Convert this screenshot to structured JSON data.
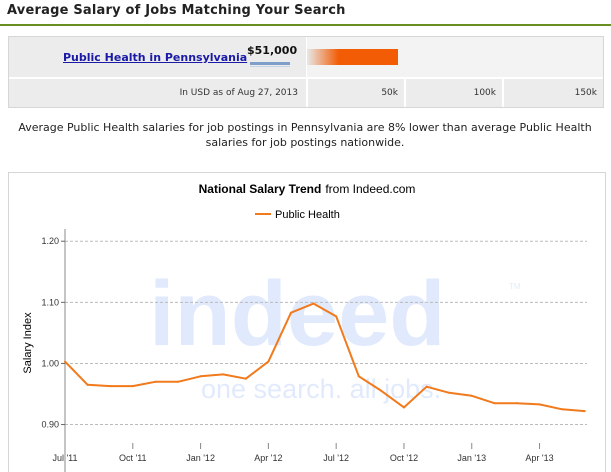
{
  "header": {
    "title": "Average Salary of Jobs Matching Your Search"
  },
  "salary": {
    "job_label": "Public Health in Pennsylvania",
    "amount": "$51,000",
    "amount_value": 51000,
    "usd_note": "In USD as of Aug 27, 2013",
    "scale_labels": [
      "50k",
      "100k",
      "150k"
    ],
    "scale_max": 150000,
    "bar_color": "#f25c05"
  },
  "description": "Average Public Health salaries for job postings in Pennsylvania are 8% lower than average Public Health salaries for job postings nationwide.",
  "watermark": {
    "logo": "indeed",
    "tagline": "one search. all jobs.",
    "tm": "TM"
  },
  "chart_data": {
    "type": "line",
    "title": "National Salary Trend",
    "title_suffix": "from Indeed.com",
    "ylabel": "Salary Index",
    "xlabel": "",
    "ylim": [
      0.86,
      1.22
    ],
    "yticks": [
      0.9,
      1.0,
      1.1,
      1.2
    ],
    "ytick_labels": [
      "0.90",
      "1.00",
      "1.10",
      "1.20"
    ],
    "x_tick_labels": [
      "Jul '11",
      "Oct '11",
      "Jan '12",
      "Apr '12",
      "Jul '12",
      "Oct '12",
      "Jan '13",
      "Apr '13"
    ],
    "x_tick_positions": [
      0,
      3,
      6,
      9,
      12,
      15,
      18,
      21
    ],
    "xlim": [
      0,
      23.1
    ],
    "grid": true,
    "legend": "top-center",
    "series": [
      {
        "name": "Public Health",
        "color": "#f07a1c",
        "x": [
          0,
          1,
          2,
          3,
          4,
          5,
          6,
          7,
          8,
          9,
          10,
          11,
          12,
          13,
          14,
          15,
          16,
          17,
          18,
          19,
          20,
          21,
          22,
          23
        ],
        "values": [
          1.003,
          0.965,
          0.963,
          0.963,
          0.97,
          0.97,
          0.979,
          0.982,
          0.975,
          1.003,
          1.083,
          1.098,
          1.077,
          0.979,
          0.955,
          0.928,
          0.962,
          0.952,
          0.947,
          0.935,
          0.935,
          0.933,
          0.925,
          0.922
        ]
      }
    ]
  }
}
